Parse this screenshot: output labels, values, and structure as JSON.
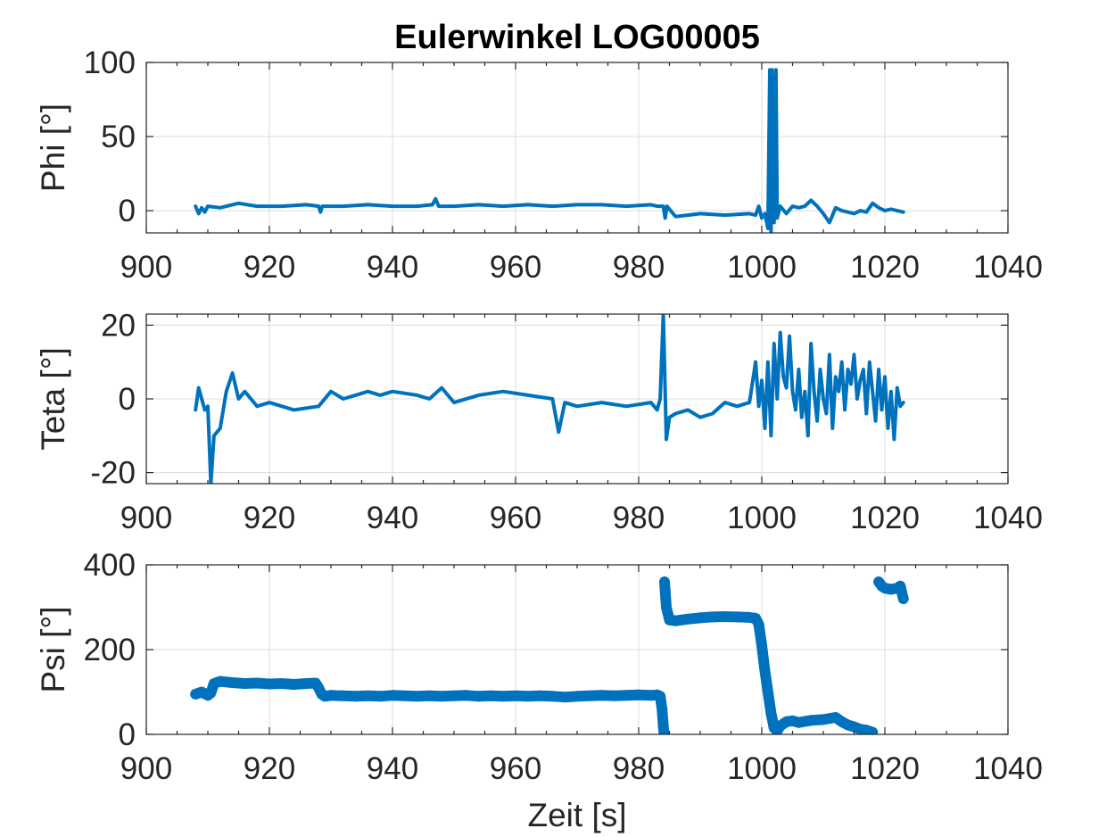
{
  "figure": {
    "title": "Eulerwinkel LOG00005",
    "line_color": "#0072BD"
  },
  "chart_data": [
    {
      "type": "line",
      "ylabel": "Phi [°]",
      "xlabel": "",
      "xlim": [
        900,
        1040
      ],
      "ylim": [
        -15,
        100
      ],
      "xticks": [
        900,
        920,
        940,
        960,
        980,
        1000,
        1020,
        1040
      ],
      "yticks": [
        0,
        50,
        100
      ],
      "grid": true,
      "series": [
        {
          "x": [
            908,
            908.5,
            909,
            909.5,
            910,
            912,
            914,
            915,
            918,
            922,
            926,
            928,
            928.3,
            928.6,
            932,
            936,
            940,
            944,
            946.5,
            947,
            947.5,
            950,
            954,
            958,
            962,
            966,
            970,
            974,
            978,
            982,
            983,
            984,
            984.3,
            984.6,
            986,
            988,
            990,
            994,
            998,
            999,
            999.5,
            1000,
            1000.5,
            1001,
            1001.3,
            1001.5,
            1001.7,
            1002,
            1002.3,
            1002.5,
            1003,
            1004,
            1005,
            1006,
            1007,
            1008,
            1009,
            1010,
            1011,
            1012,
            1013,
            1014,
            1015,
            1016,
            1017,
            1018,
            1019,
            1020,
            1021,
            1022,
            1023
          ],
          "y": [
            3,
            -2,
            2,
            -1,
            3,
            2,
            4,
            5,
            3,
            3,
            4,
            3,
            -1,
            3,
            3,
            4,
            3,
            3,
            4,
            8,
            3,
            3,
            4,
            3,
            4,
            3,
            4,
            4,
            3,
            4,
            3,
            3,
            -5,
            3,
            -4,
            -3,
            -2,
            -3,
            -2,
            -3,
            3,
            -5,
            -2,
            -12,
            95,
            -15,
            95,
            -8,
            95,
            -5,
            3,
            -2,
            3,
            2,
            3,
            7,
            3,
            -2,
            -8,
            2,
            0,
            -1,
            -2,
            0,
            -1,
            5,
            2,
            0,
            1,
            0,
            -1
          ]
        }
      ]
    },
    {
      "type": "line",
      "ylabel": "Teta [°]",
      "xlabel": "",
      "xlim": [
        900,
        1040
      ],
      "ylim": [
        -23,
        23
      ],
      "xticks": [
        900,
        920,
        940,
        960,
        980,
        1000,
        1020,
        1040
      ],
      "yticks": [
        -20,
        0,
        20
      ],
      "grid": true,
      "series": [
        {
          "x": [
            908,
            908.5,
            909,
            909.5,
            910,
            910.5,
            911,
            912,
            913,
            914,
            915,
            916,
            918,
            920,
            924,
            928,
            930,
            932,
            934,
            936,
            938,
            940,
            944,
            946,
            948,
            950,
            954,
            958,
            962,
            966,
            967,
            968,
            970,
            974,
            978,
            982,
            983,
            983.5,
            984,
            984.5,
            985,
            986,
            988,
            990,
            992,
            994,
            996,
            998,
            999,
            999.5,
            1000,
            1000.5,
            1001,
            1001.5,
            1002,
            1002.5,
            1003,
            1003.5,
            1004,
            1004.5,
            1005,
            1005.5,
            1006,
            1006.5,
            1007,
            1007.5,
            1008,
            1008.5,
            1009,
            1009.5,
            1010,
            1010.5,
            1011,
            1011.5,
            1012,
            1012.5,
            1013,
            1013.5,
            1014,
            1014.5,
            1015,
            1015.5,
            1016,
            1016.5,
            1017,
            1017.5,
            1018,
            1018.5,
            1019,
            1019.5,
            1020,
            1020.5,
            1021,
            1021.5,
            1022,
            1022.5,
            1023
          ],
          "y": [
            -3,
            3,
            0,
            -3,
            -2,
            -23,
            -10,
            -8,
            2,
            7,
            0,
            2,
            -2,
            -1,
            -3,
            -2,
            2,
            0,
            1,
            2,
            1,
            2,
            1,
            0,
            3,
            -1,
            1,
            2,
            1,
            0,
            -9,
            -1,
            -2,
            -1,
            -2,
            -1,
            -3,
            0,
            23,
            -11,
            -5,
            -4,
            -3,
            -5,
            -4,
            -1,
            -2,
            -1,
            10,
            -2,
            5,
            -8,
            10,
            -10,
            15,
            0,
            18,
            6,
            3,
            17,
            2,
            -3,
            8,
            -5,
            2,
            -10,
            15,
            2,
            -6,
            8,
            0,
            -4,
            12,
            -8,
            6,
            2,
            10,
            -3,
            8,
            4,
            12,
            0,
            5,
            8,
            -4,
            10,
            2,
            -6,
            8,
            -3,
            6,
            -8,
            2,
            -11,
            3,
            -2,
            -1
          ]
        }
      ]
    },
    {
      "type": "scatter",
      "ylabel": "Psi [°]",
      "xlabel": "Zeit [s]",
      "marker": "*",
      "xlim": [
        900,
        1040
      ],
      "ylim": [
        0,
        400
      ],
      "xticks": [
        900,
        920,
        940,
        960,
        980,
        1000,
        1020,
        1040
      ],
      "yticks": [
        0,
        200,
        400
      ],
      "grid": true,
      "series": [
        {
          "x": [
            908,
            909,
            910,
            910.5,
            911,
            912,
            914,
            916,
            918,
            920,
            922,
            924,
            926,
            927.5,
            928,
            928.5,
            929,
            930,
            932,
            934,
            936,
            938,
            940,
            942,
            944,
            946,
            948,
            950,
            952,
            954,
            956,
            958,
            960,
            962,
            964,
            966,
            968,
            970,
            972,
            974,
            976,
            978,
            980,
            982,
            983,
            983.5,
            983.8,
            984,
            984.1,
            984.2,
            984.3,
            984.5,
            985,
            986,
            988,
            990,
            992,
            994,
            996,
            998,
            999,
            999.5,
            1000,
            1000.5,
            1001,
            1001.5,
            1002,
            1002.5,
            1003,
            1004,
            1005,
            1006,
            1008,
            1010,
            1012,
            1013,
            1014,
            1015,
            1016,
            1017,
            1018,
            1019,
            1019.5,
            1020,
            1021,
            1022,
            1022.5,
            1023
          ],
          "y": [
            95,
            100,
            92,
            98,
            120,
            125,
            122,
            120,
            121,
            119,
            120,
            118,
            120,
            121,
            110,
            95,
            90,
            92,
            91,
            90,
            91,
            90,
            92,
            91,
            90,
            91,
            90,
            91,
            92,
            90,
            91,
            90,
            91,
            90,
            91,
            90,
            88,
            90,
            91,
            92,
            91,
            92,
            93,
            92,
            93,
            90,
            60,
            20,
            5,
            360,
            340,
            300,
            270,
            268,
            272,
            275,
            277,
            278,
            277,
            276,
            274,
            260,
            210,
            150,
            100,
            50,
            15,
            8,
            20,
            30,
            32,
            28,
            33,
            35,
            40,
            30,
            22,
            18,
            12,
            10,
            5,
            360,
            350,
            345,
            342,
            345,
            350,
            320
          ]
        }
      ]
    }
  ]
}
